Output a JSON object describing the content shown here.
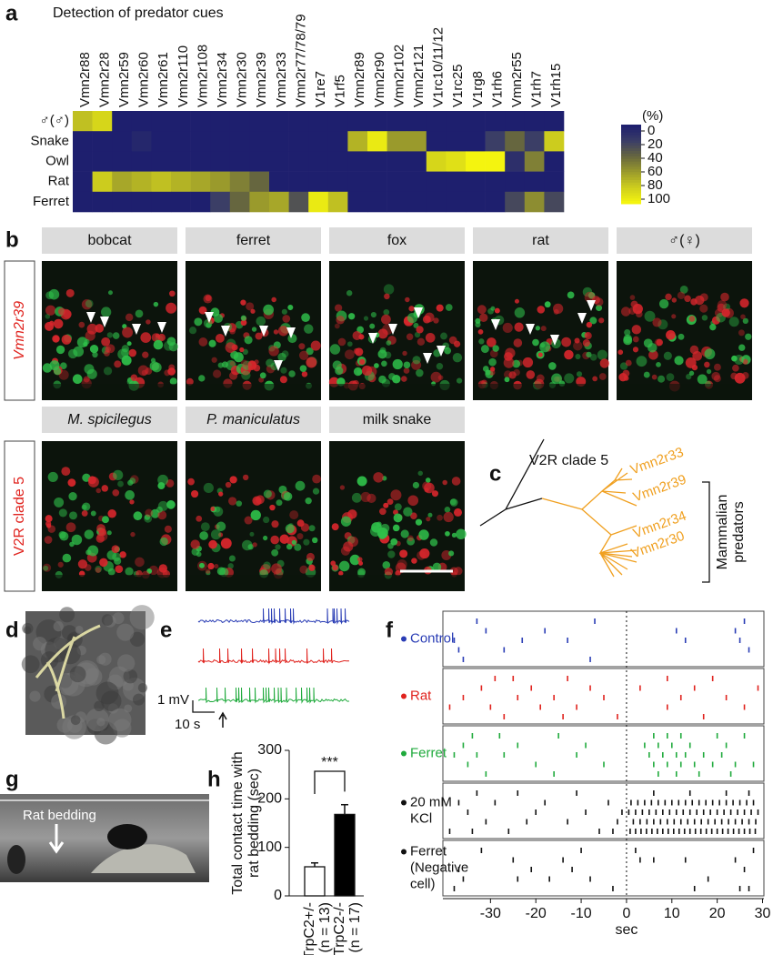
{
  "chart_data": [
    {
      "type": "heatmap",
      "panel": "a",
      "title": "Detection of predator cues",
      "columns": [
        "Vmn2r88",
        "Vmn2r28",
        "Vmn2r59",
        "Vmn2r60",
        "Vmn2r61",
        "Vmn2r110",
        "Vmn2r108",
        "Vmn2r34",
        "Vmn2r30",
        "Vmn2r39",
        "Vmn2r33",
        "Vmn2r77/78/79",
        "V1re7",
        "V1rf5",
        "Vmn2r89",
        "Vmn2r90",
        "Vmn2r102",
        "Vmn2r121",
        "V1rc10/11/12",
        "V1rc25",
        "V1rg8",
        "V1rh6",
        "Vmn2r55",
        "V1rh7",
        "V1rh15"
      ],
      "rows": [
        "♂(♂)",
        "Snake",
        "Owl",
        "Rat",
        "Ferret"
      ],
      "values": [
        [
          75,
          85,
          0,
          0,
          0,
          0,
          0,
          0,
          0,
          0,
          0,
          0,
          0,
          0,
          0,
          0,
          0,
          0,
          0,
          0,
          0,
          0,
          0,
          0,
          0
        ],
        [
          0,
          0,
          0,
          5,
          0,
          0,
          0,
          0,
          0,
          0,
          0,
          0,
          0,
          0,
          70,
          95,
          60,
          60,
          0,
          0,
          0,
          20,
          40,
          20,
          80
        ],
        [
          0,
          0,
          0,
          0,
          0,
          0,
          0,
          0,
          0,
          0,
          0,
          0,
          0,
          0,
          0,
          0,
          0,
          0,
          85,
          90,
          100,
          100,
          10,
          50,
          0
        ],
        [
          0,
          80,
          65,
          70,
          75,
          70,
          65,
          60,
          50,
          40,
          0,
          0,
          0,
          0,
          0,
          0,
          0,
          0,
          0,
          0,
          0,
          0,
          0,
          0,
          0
        ],
        [
          0,
          0,
          0,
          0,
          0,
          0,
          0,
          20,
          40,
          60,
          65,
          30,
          95,
          75,
          0,
          0,
          0,
          0,
          0,
          0,
          0,
          0,
          25,
          55,
          25
        ]
      ],
      "colorbar_label": "(%)",
      "colorbar_lim": [
        0,
        100
      ],
      "colorbar_ticks": [
        0,
        20,
        40,
        60,
        80,
        100
      ],
      "colormap": [
        "#1e1f6e",
        "#3b3e66",
        "#66663f",
        "#9a9a2c",
        "#cccc1e",
        "#f4f40f"
      ]
    },
    {
      "type": "raster",
      "panel": "f",
      "xlabel": "sec",
      "xlim": [
        -40.5,
        30.3
      ],
      "xticks": [
        -30,
        -20,
        -10,
        0,
        10,
        20,
        30
      ],
      "zero_line": true,
      "groups": [
        {
          "label": [
            "Control"
          ],
          "color": "#2a3db5",
          "rows": [
            [
              -33,
              -7,
              26
            ],
            [
              -31,
              -18,
              11,
              24
            ],
            [
              -38,
              -23,
              -13,
              13,
              25
            ],
            [
              -37,
              -27,
              27
            ],
            [
              -36,
              -8
            ]
          ]
        },
        {
          "label": [
            "Rat"
          ],
          "color": "#e0231e",
          "rows": [
            [
              -29,
              -25,
              -13,
              9,
              19
            ],
            [
              -32,
              -21,
              -8,
              3,
              15,
              29
            ],
            [
              -36,
              -24,
              -16,
              -5,
              12,
              22
            ],
            [
              -39,
              -30,
              -19,
              -11,
              9,
              26
            ],
            [
              -27,
              -14,
              -2,
              17
            ]
          ]
        },
        {
          "label": [
            "Ferret"
          ],
          "color": "#1faa3c",
          "rows": [
            [
              -34,
              -28,
              -15,
              6,
              9,
              12,
              20,
              26
            ],
            [
              -36,
              -24,
              -9,
              4,
              7,
              10,
              14,
              22
            ],
            [
              -38,
              -33,
              -27,
              -11,
              5,
              8,
              11,
              13,
              17,
              21
            ],
            [
              -35,
              -20,
              -5,
              6,
              9,
              12,
              15,
              19,
              24,
              28
            ],
            [
              -31,
              -16,
              7,
              11,
              16,
              23
            ]
          ]
        },
        {
          "label": [
            "20 mM",
            "KCl"
          ],
          "color": "#111111",
          "rows": [
            [
              -33,
              -24,
              -11,
              6,
              14,
              22,
              27
            ],
            [
              -37,
              -29,
              -18,
              -4,
              1,
              2.5,
              4,
              5.5,
              7,
              8.5,
              10,
              11.5,
              13,
              14.5,
              16,
              17.5,
              19,
              20.5,
              22,
              23.5,
              25,
              26.5,
              28
            ],
            [
              -35,
              -20,
              -9,
              -1,
              0.5,
              2,
              3.5,
              5,
              6.5,
              8,
              9.5,
              11,
              12.5,
              14,
              15.5,
              17,
              18.5,
              20,
              21.5,
              23,
              24.5,
              26,
              27.5,
              29
            ],
            [
              -31,
              -22,
              -13,
              -2,
              1.5,
              3,
              4.5,
              6,
              7.5,
              9,
              10.5,
              12,
              13.5,
              15,
              16.5,
              18,
              19.5,
              21,
              22.5,
              24,
              25.5,
              27,
              28.5
            ],
            [
              -39,
              -34,
              -26,
              -6,
              -3,
              0.8,
              2,
              3.2,
              4.4,
              5.6,
              6.8,
              8,
              9.2,
              10.4,
              11.6,
              12.8,
              14,
              15.2,
              16.4,
              17.6,
              18.8,
              20,
              21.2,
              22.4,
              23.6,
              24.8,
              26,
              27.2,
              28.4
            ]
          ]
        },
        {
          "label": [
            "Ferret",
            "(Negative",
            "cell)"
          ],
          "color": "#111111",
          "rows": [
            [
              -32,
              -10,
              2,
              28
            ],
            [
              -25,
              -14,
              3,
              6,
              13,
              24
            ],
            [
              -37,
              -21,
              -12,
              26
            ],
            [
              -36,
              -24,
              -17,
              -8,
              18
            ],
            [
              -38,
              -3,
              15,
              25,
              27
            ]
          ]
        }
      ]
    },
    {
      "type": "bar",
      "panel": "h",
      "ylabel": [
        "Total contact time with",
        "rat bedding (sec)"
      ],
      "categories": [
        "TrpC2+/-",
        "TrpC2-/-"
      ],
      "category_notes": [
        "(n = 13)",
        "(n = 17)"
      ],
      "values": [
        60,
        168
      ],
      "errors": [
        8,
        20
      ],
      "colors": [
        "#ffffff",
        "#000000"
      ],
      "ylim": [
        0,
        300
      ],
      "yticks": [
        0,
        100,
        200,
        300
      ],
      "significance": "***"
    }
  ],
  "panel_b": {
    "label": "b",
    "row_labels": [
      "Vmn2r39",
      "V2R clade 5"
    ],
    "headers": [
      [
        "bobcat",
        "ferret",
        "fox",
        "rat",
        "♂(♀)"
      ],
      [
        "M. spicilegus",
        "P. maniculatus",
        "milk snake"
      ]
    ]
  },
  "panel_c": {
    "label": "c",
    "title": "V2R clade 5",
    "leaves": [
      "Vmn2r33",
      "Vmn2r39",
      "Vmn2r34",
      "Vmn2r30"
    ],
    "group": [
      "Mammalian",
      "predators"
    ]
  },
  "panel_d": {
    "label": "d"
  },
  "panel_e": {
    "label": "e",
    "scale_y": "1 mV",
    "scale_x": "10 s"
  },
  "panel_g": {
    "label": "g",
    "annotation": "Rat bedding"
  }
}
